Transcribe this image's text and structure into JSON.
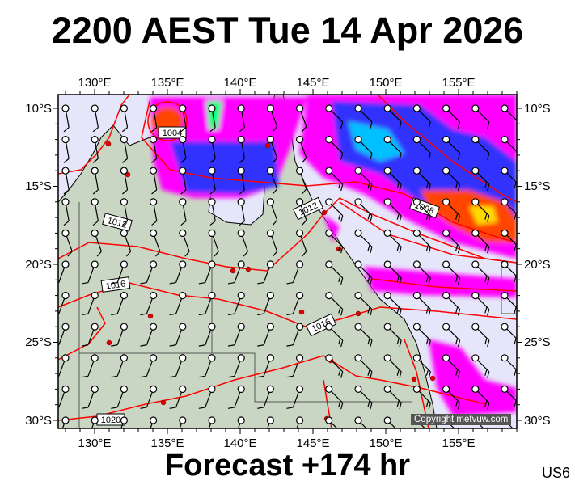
{
  "title": "2200 AEST Tue 14 Apr 2026",
  "footer": "Forecast +174 hr",
  "product_code": "US6",
  "copyright": "Copyright metvuw.com",
  "map": {
    "lon_labels": [
      "130°E",
      "135°E",
      "140°E",
      "145°E",
      "150°E",
      "155°E"
    ],
    "lat_labels": [
      "10°S",
      "15°S",
      "20°S",
      "25°S",
      "30°S"
    ],
    "isobar_labels": [
      "1004",
      "1008",
      "1012",
      "1012",
      "1016",
      "1016",
      "1020"
    ],
    "colors": {
      "ocean": "#e6e6fa",
      "land": "#c9d6c3",
      "isobar": "#ff0000",
      "precip_light": "#ff00ff",
      "precip_mid": "#0000ff",
      "precip_high": "#ff4500"
    }
  }
}
